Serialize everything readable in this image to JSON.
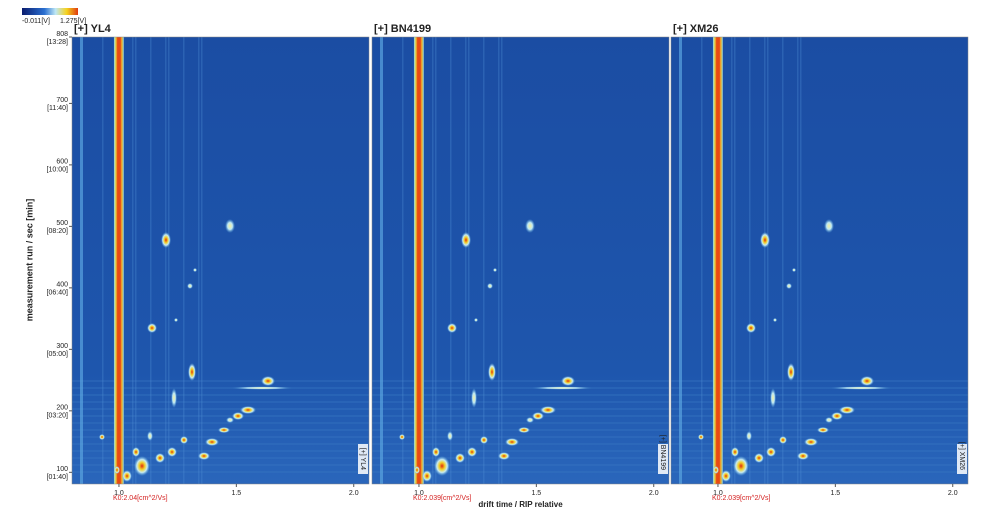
{
  "colorbar": {
    "min_label": "-0.011[V]",
    "max_label": "1.275[V]"
  },
  "chart_data": [
    {
      "type": "heatmap",
      "title": "[+] YL4",
      "side_label": "[+] YL4",
      "rip_label": "K0:2.04[cm^2/Vs]",
      "ylabel": "measurement run / sec [min]",
      "xlim": [
        0.8,
        2.065
      ],
      "ylim": [
        81,
        808
      ],
      "xticks": [
        {
          "value": 1,
          "label": "1.0"
        },
        1.5,
        {
          "value": 2,
          "label": "2.0"
        }
      ],
      "yticks": [
        100,
        200,
        300,
        400,
        500,
        600,
        700,
        808
      ],
      "ytick_times": [
        "[01:40]",
        "[03:20]",
        "[05:00]",
        "[06:40]",
        "[08:20]",
        "[10:00]",
        "[11:40]",
        "[13:28]"
      ]
    },
    {
      "type": "heatmap",
      "title": "[+] BN4199",
      "side_label": "[+] BN4199",
      "rip_label": "K0:2.039[cm^2/Vs]",
      "xlabel": "drift time / RIP relative",
      "xlim": [
        0.8,
        2.065
      ],
      "ylim": [
        81,
        808
      ],
      "xticks": [
        {
          "value": 1,
          "label": "1.0"
        },
        1.5,
        {
          "value": 2,
          "label": "2.0"
        }
      ]
    },
    {
      "type": "heatmap",
      "title": "[+] XM26",
      "side_label": "[+] XM26",
      "rip_label": "K0:2.039[cm^2/Vs]",
      "xlim": [
        0.8,
        2.065
      ],
      "ylim": [
        81,
        808
      ],
      "xticks": [
        {
          "value": 1,
          "label": "1.0"
        },
        1.5,
        {
          "value": 2,
          "label": "2.0"
        }
      ]
    }
  ]
}
